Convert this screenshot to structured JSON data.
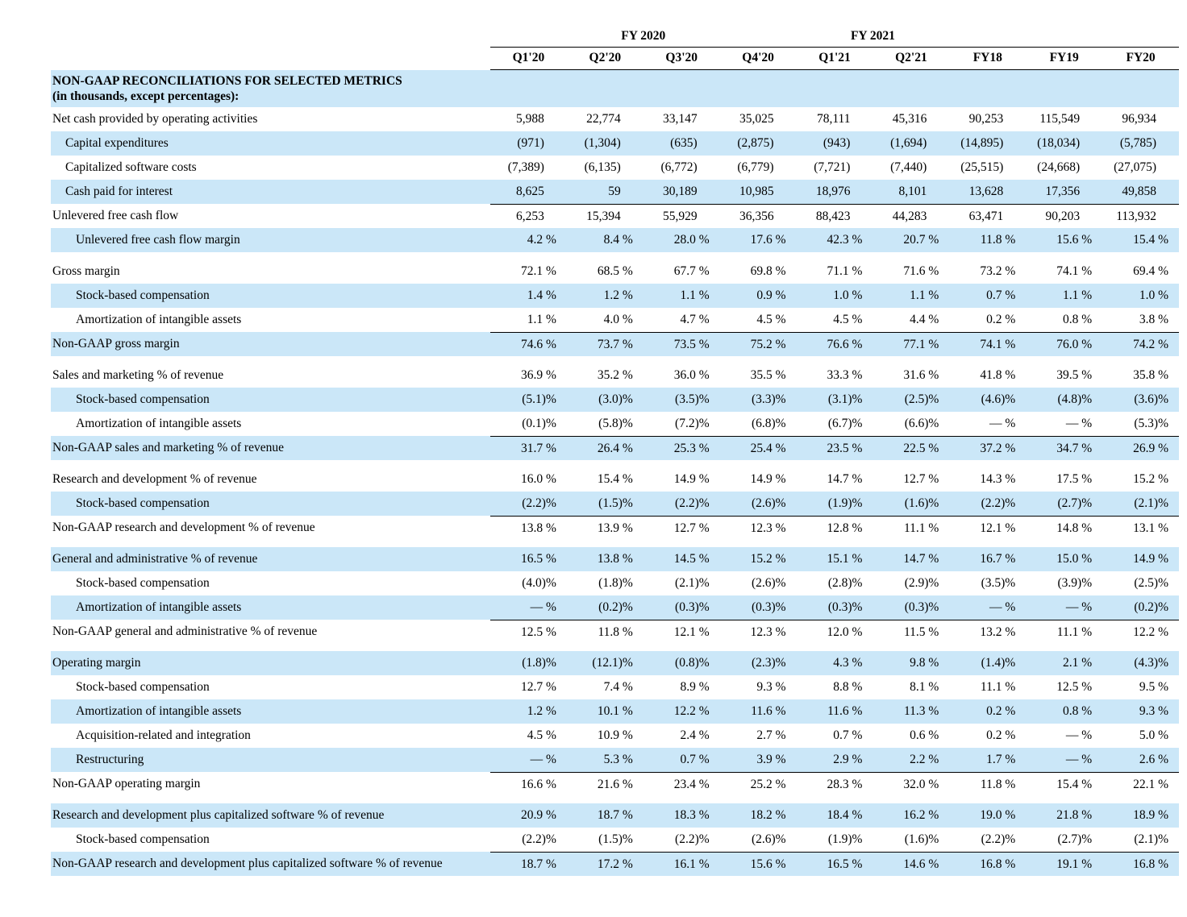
{
  "colors": {
    "row_shade": "#cbe7f8",
    "text": "#000000",
    "rule": "#000000"
  },
  "header": {
    "groups": [
      {
        "label": "FY 2020",
        "span": 4
      },
      {
        "label": "FY 2021",
        "span": 2
      },
      {
        "label": "",
        "span": 3
      }
    ],
    "columns": [
      "Q1'20",
      "Q2'20",
      "Q3'20",
      "Q4'20",
      "Q1'21",
      "Q2'21",
      "FY18",
      "FY19",
      "FY20"
    ]
  },
  "section": {
    "title": "NON-GAAP RECONCILIATIONS FOR SELECTED METRICS",
    "subtitle": "(in thousands, except percentages):"
  },
  "rows": [
    {
      "label": "Net cash provided by operating activities",
      "indent": 0,
      "shaded": false,
      "gap": false,
      "rule": false,
      "values": [
        "5,988",
        "22,774",
        "33,147",
        "35,025",
        "78,111",
        "45,316",
        "90,253",
        "115,549",
        "96,934"
      ]
    },
    {
      "label": "Capital expenditures",
      "indent": 1,
      "shaded": true,
      "gap": false,
      "rule": false,
      "values": [
        "(971)",
        "(1,304)",
        "(635)",
        "(2,875)",
        "(943)",
        "(1,694)",
        "(14,895)",
        "(18,034)",
        "(5,785)"
      ]
    },
    {
      "label": "Capitalized software costs",
      "indent": 1,
      "shaded": false,
      "gap": false,
      "rule": false,
      "values": [
        "(7,389)",
        "(6,135)",
        "(6,772)",
        "(6,779)",
        "(7,721)",
        "(7,440)",
        "(25,515)",
        "(24,668)",
        "(27,075)"
      ]
    },
    {
      "label": "Cash paid for interest",
      "indent": 1,
      "shaded": true,
      "gap": false,
      "rule": false,
      "values": [
        "8,625",
        "59",
        "30,189",
        "10,985",
        "18,976",
        "8,101",
        "13,628",
        "17,356",
        "49,858"
      ]
    },
    {
      "label": "Unlevered free cash flow",
      "indent": 0,
      "shaded": false,
      "gap": false,
      "rule": true,
      "values": [
        "6,253",
        "15,394",
        "55,929",
        "36,356",
        "88,423",
        "44,283",
        "63,471",
        "90,203",
        "113,932"
      ]
    },
    {
      "label": "Unlevered free cash flow margin",
      "indent": 2,
      "shaded": true,
      "gap": false,
      "rule": false,
      "values": [
        "4.2 %",
        "8.4 %",
        "28.0 %",
        "17.6 %",
        "42.3 %",
        "20.7 %",
        "11.8 %",
        "15.6 %",
        "15.4 %"
      ]
    },
    {
      "label": "Gross margin",
      "indent": 0,
      "shaded": false,
      "gap": true,
      "rule": false,
      "values": [
        "72.1 %",
        "68.5 %",
        "67.7 %",
        "69.8 %",
        "71.1 %",
        "71.6 %",
        "73.2 %",
        "74.1 %",
        "69.4 %"
      ]
    },
    {
      "label": "Stock-based compensation",
      "indent": 2,
      "shaded": true,
      "gap": false,
      "rule": false,
      "values": [
        "1.4 %",
        "1.2 %",
        "1.1 %",
        "0.9 %",
        "1.0 %",
        "1.1 %",
        "0.7 %",
        "1.1 %",
        "1.0 %"
      ]
    },
    {
      "label": "Amortization of intangible assets",
      "indent": 2,
      "shaded": false,
      "gap": false,
      "rule": false,
      "values": [
        "1.1 %",
        "4.0 %",
        "4.7 %",
        "4.5 %",
        "4.5 %",
        "4.4 %",
        "0.2 %",
        "0.8 %",
        "3.8 %"
      ]
    },
    {
      "label": "Non-GAAP gross margin",
      "indent": 0,
      "shaded": true,
      "gap": false,
      "rule": true,
      "values": [
        "74.6 %",
        "73.7 %",
        "73.5 %",
        "75.2 %",
        "76.6 %",
        "77.1 %",
        "74.1 %",
        "76.0 %",
        "74.2 %"
      ]
    },
    {
      "label": "Sales and marketing % of revenue",
      "indent": 0,
      "shaded": false,
      "gap": true,
      "rule": false,
      "values": [
        "36.9 %",
        "35.2 %",
        "36.0 %",
        "35.5 %",
        "33.3 %",
        "31.6 %",
        "41.8 %",
        "39.5 %",
        "35.8 %"
      ]
    },
    {
      "label": "Stock-based compensation",
      "indent": 2,
      "shaded": true,
      "gap": false,
      "rule": false,
      "values": [
        "(5.1)%",
        "(3.0)%",
        "(3.5)%",
        "(3.3)%",
        "(3.1)%",
        "(2.5)%",
        "(4.6)%",
        "(4.8)%",
        "(3.6)%"
      ]
    },
    {
      "label": "Amortization of intangible assets",
      "indent": 2,
      "shaded": false,
      "gap": false,
      "rule": false,
      "values": [
        "(0.1)%",
        "(5.8)%",
        "(7.2)%",
        "(6.8)%",
        "(6.7)%",
        "(6.6)%",
        "— %",
        "— %",
        "(5.3)%"
      ]
    },
    {
      "label": "Non-GAAP sales and marketing % of revenue",
      "indent": 0,
      "shaded": true,
      "gap": false,
      "rule": true,
      "values": [
        "31.7 %",
        "26.4 %",
        "25.3 %",
        "25.4 %",
        "23.5 %",
        "22.5 %",
        "37.2 %",
        "34.7 %",
        "26.9 %"
      ]
    },
    {
      "label": "Research and development % of revenue",
      "indent": 0,
      "shaded": false,
      "gap": true,
      "rule": false,
      "values": [
        "16.0 %",
        "15.4 %",
        "14.9 %",
        "14.9 %",
        "14.7 %",
        "12.7 %",
        "14.3 %",
        "17.5 %",
        "15.2 %"
      ]
    },
    {
      "label": "Stock-based compensation",
      "indent": 2,
      "shaded": true,
      "gap": false,
      "rule": false,
      "values": [
        "(2.2)%",
        "(1.5)%",
        "(2.2)%",
        "(2.6)%",
        "(1.9)%",
        "(1.6)%",
        "(2.2)%",
        "(2.7)%",
        "(2.1)%"
      ]
    },
    {
      "label": "Non-GAAP research and development % of revenue",
      "indent": 0,
      "shaded": false,
      "gap": false,
      "rule": true,
      "values": [
        "13.8 %",
        "13.9 %",
        "12.7 %",
        "12.3 %",
        "12.8 %",
        "11.1 %",
        "12.1 %",
        "14.8 %",
        "13.1 %"
      ]
    },
    {
      "label": "General and administrative % of revenue",
      "indent": 0,
      "shaded": true,
      "gap": true,
      "rule": false,
      "values": [
        "16.5 %",
        "13.8 %",
        "14.5 %",
        "15.2 %",
        "15.1 %",
        "14.7 %",
        "16.7 %",
        "15.0 %",
        "14.9 %"
      ]
    },
    {
      "label": "Stock-based compensation",
      "indent": 2,
      "shaded": false,
      "gap": false,
      "rule": false,
      "values": [
        "(4.0)%",
        "(1.8)%",
        "(2.1)%",
        "(2.6)%",
        "(2.8)%",
        "(2.9)%",
        "(3.5)%",
        "(3.9)%",
        "(2.5)%"
      ]
    },
    {
      "label": "Amortization of intangible assets",
      "indent": 2,
      "shaded": true,
      "gap": false,
      "rule": false,
      "values": [
        "— %",
        "(0.2)%",
        "(0.3)%",
        "(0.3)%",
        "(0.3)%",
        "(0.3)%",
        "— %",
        "— %",
        "(0.2)%"
      ]
    },
    {
      "label": "Non-GAAP general and administrative % of revenue",
      "indent": 0,
      "shaded": false,
      "gap": false,
      "rule": true,
      "values": [
        "12.5 %",
        "11.8 %",
        "12.1 %",
        "12.3 %",
        "12.0 %",
        "11.5 %",
        "13.2 %",
        "11.1 %",
        "12.2 %"
      ]
    },
    {
      "label": "Operating margin",
      "indent": 0,
      "shaded": true,
      "gap": true,
      "rule": false,
      "values": [
        "(1.8)%",
        "(12.1)%",
        "(0.8)%",
        "(2.3)%",
        "4.3 %",
        "9.8 %",
        "(1.4)%",
        "2.1 %",
        "(4.3)%"
      ]
    },
    {
      "label": "Stock-based compensation",
      "indent": 2,
      "shaded": false,
      "gap": false,
      "rule": false,
      "values": [
        "12.7 %",
        "7.4 %",
        "8.9 %",
        "9.3 %",
        "8.8 %",
        "8.1 %",
        "11.1 %",
        "12.5 %",
        "9.5 %"
      ]
    },
    {
      "label": "Amortization of intangible assets",
      "indent": 2,
      "shaded": true,
      "gap": false,
      "rule": false,
      "values": [
        "1.2 %",
        "10.1 %",
        "12.2 %",
        "11.6 %",
        "11.6 %",
        "11.3 %",
        "0.2 %",
        "0.8 %",
        "9.3 %"
      ]
    },
    {
      "label": "Acquisition-related and integration",
      "indent": 2,
      "shaded": false,
      "gap": false,
      "rule": false,
      "values": [
        "4.5 %",
        "10.9 %",
        "2.4 %",
        "2.7 %",
        "0.7 %",
        "0.6 %",
        "0.2 %",
        "— %",
        "5.0 %"
      ]
    },
    {
      "label": "Restructuring",
      "indent": 2,
      "shaded": true,
      "gap": false,
      "rule": false,
      "values": [
        "— %",
        "5.3 %",
        "0.7 %",
        "3.9 %",
        "2.9 %",
        "2.2 %",
        "1.7 %",
        "— %",
        "2.6 %"
      ]
    },
    {
      "label": "Non-GAAP operating margin",
      "indent": 0,
      "shaded": false,
      "gap": false,
      "rule": true,
      "values": [
        "16.6 %",
        "21.6 %",
        "23.4 %",
        "25.2 %",
        "28.3 %",
        "32.0 %",
        "11.8 %",
        "15.4 %",
        "22.1 %"
      ]
    },
    {
      "label": "Research and development plus capitalized software % of revenue",
      "indent": 0,
      "shaded": true,
      "gap": true,
      "rule": false,
      "values": [
        "20.9 %",
        "18.7 %",
        "18.3 %",
        "18.2 %",
        "18.4 %",
        "16.2 %",
        "19.0 %",
        "21.8 %",
        "18.9 %"
      ]
    },
    {
      "label": "Stock-based compensation",
      "indent": 2,
      "shaded": false,
      "gap": false,
      "rule": false,
      "values": [
        "(2.2)%",
        "(1.5)%",
        "(2.2)%",
        "(2.6)%",
        "(1.9)%",
        "(1.6)%",
        "(2.2)%",
        "(2.7)%",
        "(2.1)%"
      ]
    },
    {
      "label": "Non-GAAP research and development plus capitalized software % of revenue",
      "indent": 0,
      "shaded": true,
      "gap": false,
      "rule": true,
      "values": [
        "18.7 %",
        "17.2 %",
        "16.1 %",
        "15.6 %",
        "16.5 %",
        "14.6 %",
        "16.8 %",
        "19.1 %",
        "16.8 %"
      ]
    }
  ]
}
